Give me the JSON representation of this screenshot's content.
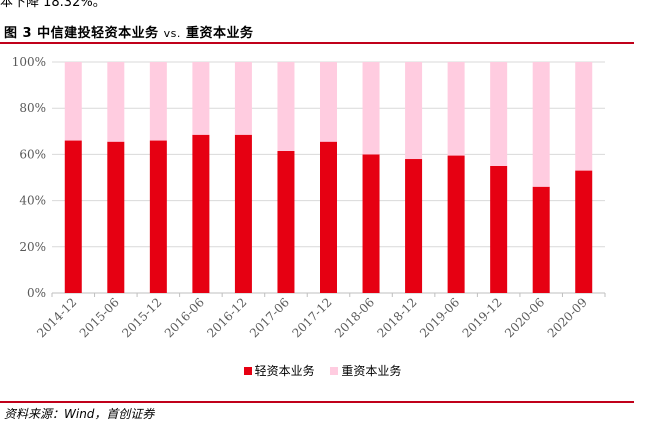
{
  "header": {
    "top_text": "本下降 18.32%。",
    "figure_prefix": "图 3",
    "title_part1": "中信建投轻资本业务",
    "title_vs": "vs.",
    "title_part2": "重资本业务"
  },
  "footer": {
    "source": "资料来源：Wind，首创证券"
  },
  "legend": [
    {
      "label": "轻资本业务",
      "color": "#e60012"
    },
    {
      "label": "重资本业务",
      "color": "#ffcce0"
    }
  ],
  "chart_data": {
    "type": "bar",
    "stacked": true,
    "categories": [
      "2014-12",
      "2015-06",
      "2015-12",
      "2016-06",
      "2016-12",
      "2017-06",
      "2017-12",
      "2018-06",
      "2018-12",
      "2019-06",
      "2019-12",
      "2020-06",
      "2020-09"
    ],
    "series": [
      {
        "name": "轻资本业务",
        "color": "#e60012",
        "values": [
          66,
          65.5,
          66,
          68.5,
          68.5,
          61.5,
          65.5,
          60,
          58,
          59.5,
          55,
          46,
          53
        ]
      },
      {
        "name": "重资本业务",
        "color": "#ffcce0",
        "values": [
          34,
          34.5,
          34,
          31.5,
          31.5,
          38.5,
          34.5,
          40,
          42,
          40.5,
          45,
          54,
          47
        ]
      }
    ],
    "ylim": [
      0,
      100
    ],
    "yticks": [
      "0%",
      "20%",
      "40%",
      "60%",
      "80%",
      "100%"
    ],
    "grid": true,
    "legend_position": "bottom"
  }
}
